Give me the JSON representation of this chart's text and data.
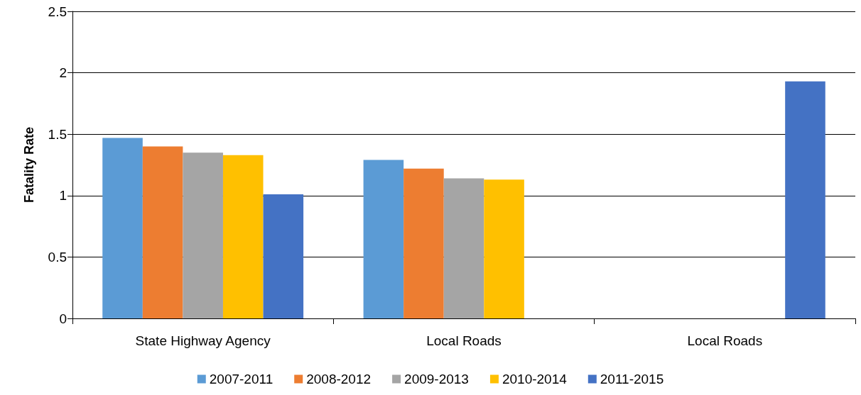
{
  "chart_data": {
    "type": "bar",
    "ylabel": "Fatality Rate",
    "categories": [
      "State Highway Agency",
      "Local Roads",
      "Local Roads"
    ],
    "series": [
      {
        "name": "2007-2011",
        "color": "#5b9bd5",
        "values": [
          1.47,
          1.29,
          null
        ]
      },
      {
        "name": "2008-2012",
        "color": "#ed7d31",
        "values": [
          1.4,
          1.22,
          null
        ]
      },
      {
        "name": "2009-2013",
        "color": "#a5a5a5",
        "values": [
          1.35,
          1.14,
          null
        ]
      },
      {
        "name": "2010-2014",
        "color": "#ffc000",
        "values": [
          1.33,
          1.13,
          null
        ]
      },
      {
        "name": "2011-2015",
        "color": "#4472c4",
        "values": [
          1.01,
          null,
          1.93
        ]
      }
    ],
    "ylim": [
      0,
      2.5
    ],
    "yticks": [
      0,
      0.5,
      1,
      1.5,
      2,
      2.5
    ],
    "grid": "y",
    "legend": "bottom"
  }
}
